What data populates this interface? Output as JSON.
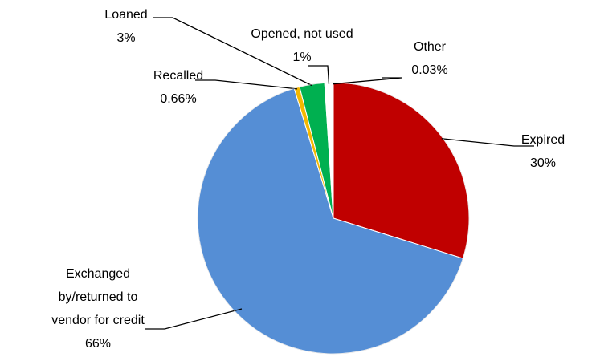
{
  "chart_data": {
    "type": "pie",
    "categories": [
      "Expired",
      "Exchanged by/returned to vendor for credit",
      "Recalled",
      "Loaned",
      "Opened, not used",
      "Other"
    ],
    "values": [
      30,
      66,
      0.66,
      3,
      1,
      0.03
    ],
    "value_labels": [
      "30%",
      "66%",
      "0.66%",
      "3%",
      "1%",
      "0.03%"
    ],
    "colors": [
      "#c00000",
      "#558ed5",
      "#f5b800",
      "#00b050",
      "#ffffff",
      "#ffffff"
    ]
  }
}
